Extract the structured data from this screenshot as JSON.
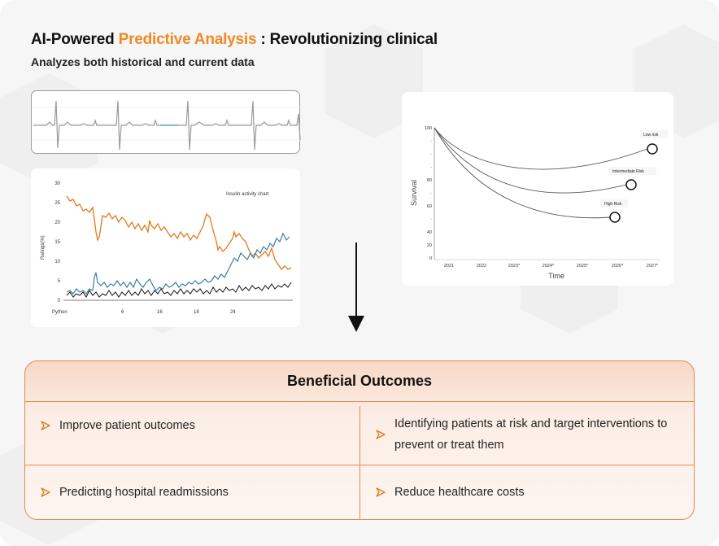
{
  "header": {
    "title_prefix": "AI-Powered ",
    "title_highlight": "Predictive Analysis",
    "title_suffix": " : Revolutionizing clinical",
    "subtitle": "Analyzes both historical and current data"
  },
  "colors": {
    "accent": "#f08a24",
    "panel_border": "#e08a55",
    "orange_series": "#e07a1f",
    "blue_series": "#3b7ea8",
    "black_series": "#222222"
  },
  "insulin_chart": {
    "title": "Insulin activity chart",
    "ylabel": "Ratings(%)",
    "yticks": [
      "30",
      "25",
      "20",
      "15",
      "10",
      "5",
      "0"
    ],
    "xticks": [
      "Python",
      "6",
      "16",
      "18",
      "24"
    ]
  },
  "survival_chart": {
    "ylabel": "Survival",
    "xlabel": "Time",
    "yticks": [
      "100",
      "80",
      "60",
      "40",
      "20",
      "0"
    ],
    "xticks": [
      "2021",
      "2022",
      "2023*",
      "2024*",
      "2025*",
      "2026*",
      "2027*"
    ],
    "labels": [
      "Low risk",
      "Intermediate Risk",
      "High Risk"
    ]
  },
  "outcomes": {
    "heading": "Beneficial Outcomes",
    "items": [
      "Improve patient outcomes",
      "Identifying patients at risk and target interventions to prevent or treat them",
      "Predicting hospital readmissions",
      "Reduce healthcare costs"
    ]
  }
}
